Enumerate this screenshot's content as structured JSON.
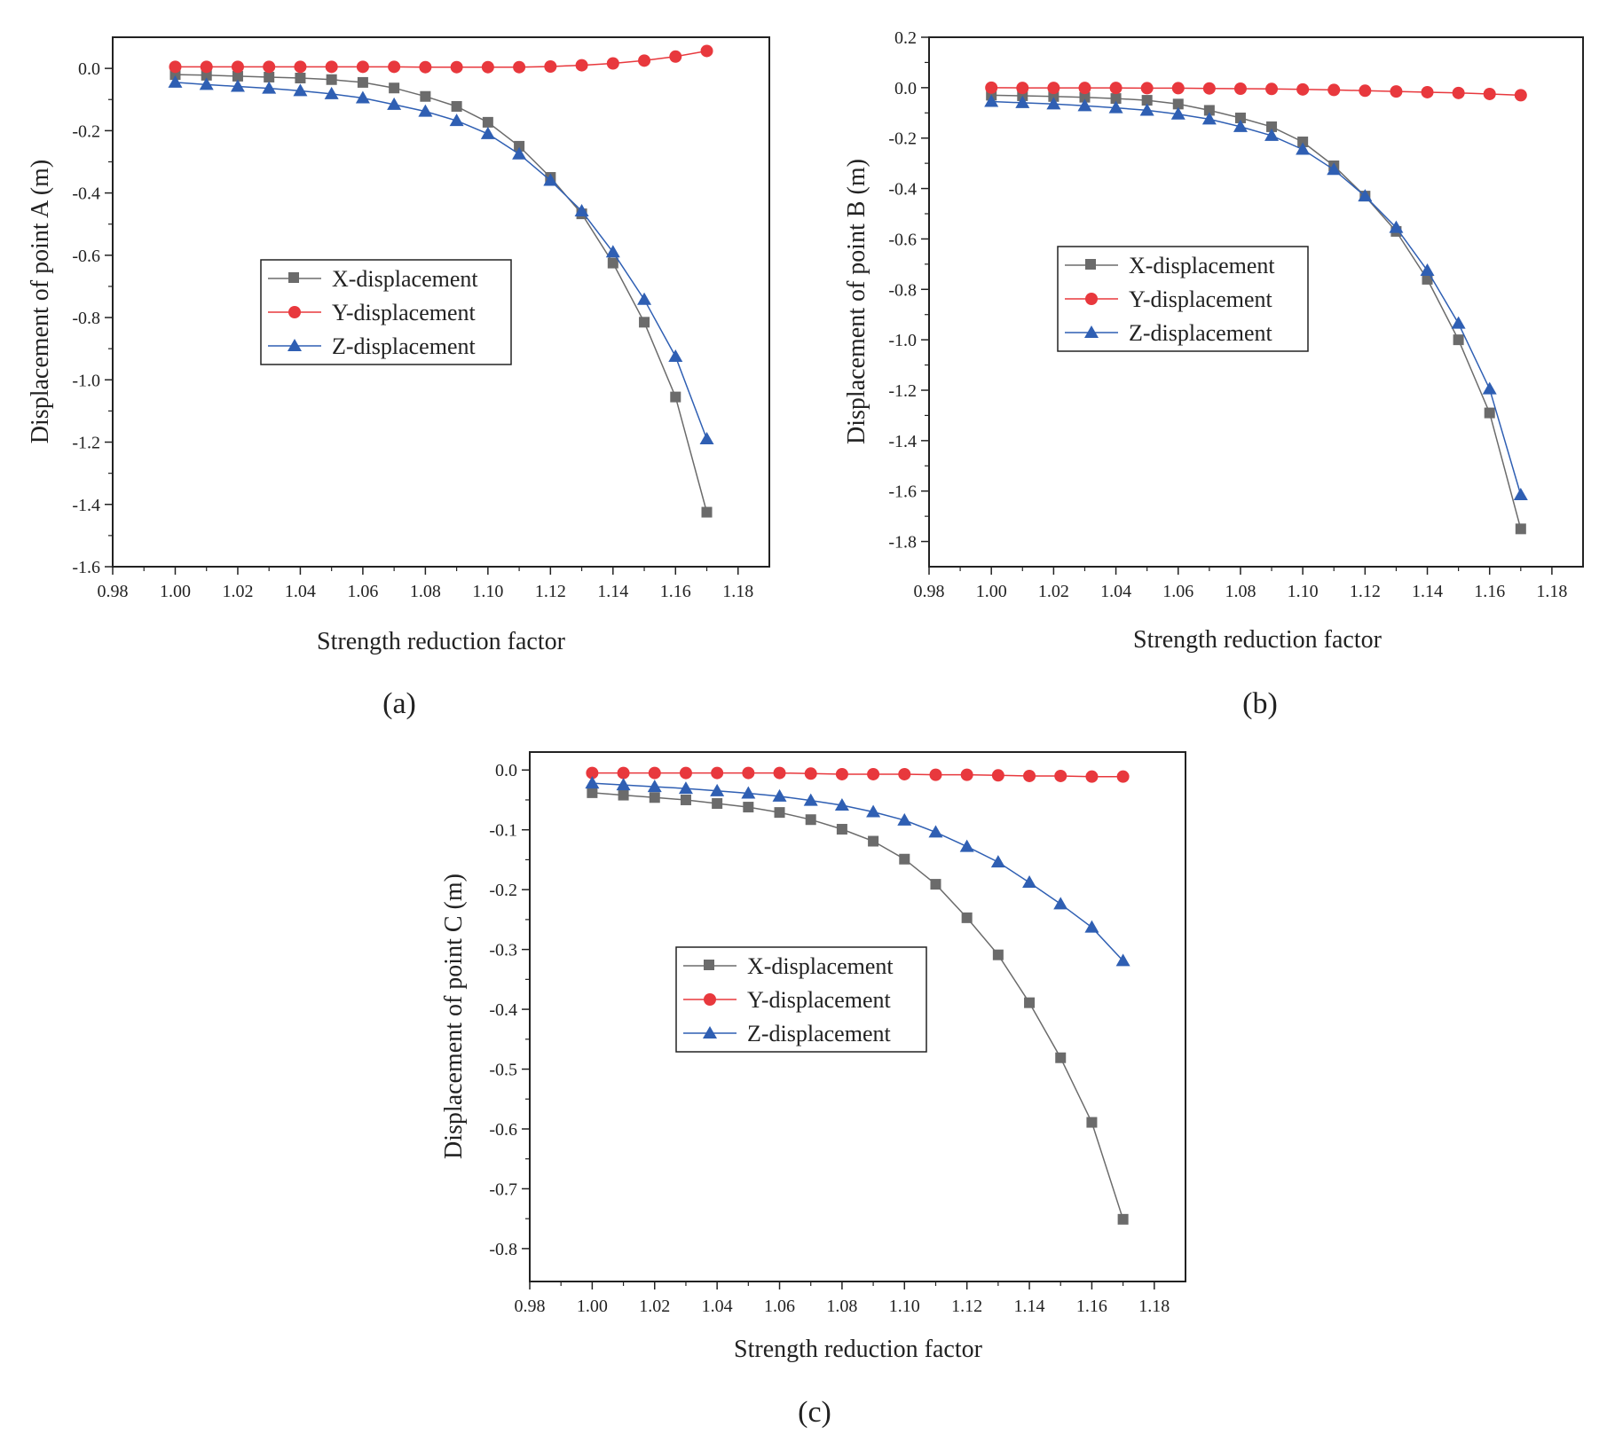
{
  "figure": {
    "captions": [
      "(a)",
      "(b)",
      "(c)"
    ]
  },
  "series_styles": [
    {
      "name": "X-displacement",
      "color": "#6b6b6b",
      "marker": "square"
    },
    {
      "name": "Y-displacement",
      "color": "#e8383d",
      "marker": "circle"
    },
    {
      "name": "Z-displacement",
      "color": "#2f5fb3",
      "marker": "triangle"
    }
  ],
  "chart_data": [
    {
      "type": "line",
      "caption": "(a)",
      "xlabel": "Strength reduction factor",
      "ylabel": "Displacement of point A (m)",
      "xlim": [
        0.98,
        1.19
      ],
      "ylim": [
        -1.6,
        0.1
      ],
      "xticks": [
        0.98,
        1.0,
        1.02,
        1.04,
        1.06,
        1.08,
        1.1,
        1.12,
        1.14,
        1.16,
        1.18
      ],
      "xtick_labels": [
        "0.98",
        "1.00",
        "1.02",
        "1.04",
        "1.06",
        "1.08",
        "1.10",
        "1.12",
        "1.14",
        "1.16",
        "1.18"
      ],
      "yticks": [
        0.0,
        -0.2,
        -0.4,
        -0.6,
        -0.8,
        -1.0,
        -1.2,
        -1.4,
        -1.6
      ],
      "ytick_labels": [
        "0.0",
        "-0.2",
        "-0.4",
        "-0.6",
        "-0.8",
        "-1.0",
        "-1.2",
        "-1.4",
        "-1.6"
      ],
      "legend_position": "center-left",
      "x": [
        1.0,
        1.01,
        1.02,
        1.03,
        1.04,
        1.05,
        1.06,
        1.07,
        1.08,
        1.09,
        1.1,
        1.11,
        1.12,
        1.13,
        1.14,
        1.15,
        1.16,
        1.17
      ],
      "series": [
        {
          "name": "X-displacement",
          "values": [
            -0.02,
            -0.022,
            -0.025,
            -0.028,
            -0.031,
            -0.036,
            -0.045,
            -0.063,
            -0.09,
            -0.122,
            -0.173,
            -0.25,
            -0.35,
            -0.467,
            -0.625,
            -0.815,
            -1.055,
            -1.425
          ]
        },
        {
          "name": "Y-displacement",
          "values": [
            0.005,
            0.005,
            0.005,
            0.005,
            0.005,
            0.005,
            0.005,
            0.005,
            0.004,
            0.004,
            0.004,
            0.004,
            0.006,
            0.01,
            0.016,
            0.025,
            0.038,
            0.056
          ]
        },
        {
          "name": "Z-displacement",
          "values": [
            -0.045,
            -0.052,
            -0.058,
            -0.064,
            -0.072,
            -0.082,
            -0.095,
            -0.116,
            -0.138,
            -0.168,
            -0.21,
            -0.275,
            -0.36,
            -0.458,
            -0.59,
            -0.742,
            -0.925,
            -1.19
          ]
        }
      ]
    },
    {
      "type": "line",
      "caption": "(b)",
      "xlabel": "Strength reduction factor",
      "ylabel": "Displacement of point B (m)",
      "xlim": [
        0.98,
        1.19
      ],
      "ylim": [
        -1.9,
        0.2
      ],
      "xticks": [
        0.98,
        1.0,
        1.02,
        1.04,
        1.06,
        1.08,
        1.1,
        1.12,
        1.14,
        1.16,
        1.18
      ],
      "xtick_labels": [
        "0.98",
        "1.00",
        "1.02",
        "1.04",
        "1.06",
        "1.08",
        "1.10",
        "1.12",
        "1.14",
        "1.16",
        "1.18"
      ],
      "yticks": [
        0.2,
        0.0,
        -0.2,
        -0.4,
        -0.6,
        -0.8,
        -1.0,
        -1.2,
        -1.4,
        -1.6,
        -1.8
      ],
      "ytick_labels": [
        "0.2",
        "0.0",
        "-0.2",
        "-0.4",
        "-0.6",
        "-0.8",
        "-1.0",
        "-1.2",
        "-1.4",
        "-1.6",
        "-1.8"
      ],
      "legend_position": "center-left",
      "x": [
        1.0,
        1.01,
        1.02,
        1.03,
        1.04,
        1.05,
        1.06,
        1.07,
        1.08,
        1.09,
        1.1,
        1.11,
        1.12,
        1.13,
        1.14,
        1.15,
        1.16,
        1.17
      ],
      "series": [
        {
          "name": "X-displacement",
          "values": [
            -0.03,
            -0.032,
            -0.035,
            -0.038,
            -0.043,
            -0.05,
            -0.065,
            -0.09,
            -0.12,
            -0.155,
            -0.215,
            -0.31,
            -0.43,
            -0.57,
            -0.76,
            -1.0,
            -1.29,
            -1.75
          ]
        },
        {
          "name": "Y-displacement",
          "values": [
            0.0,
            -0.001,
            -0.001,
            -0.001,
            -0.001,
            -0.002,
            -0.002,
            -0.003,
            -0.004,
            -0.005,
            -0.007,
            -0.009,
            -0.012,
            -0.015,
            -0.018,
            -0.021,
            -0.025,
            -0.03
          ]
        },
        {
          "name": "Z-displacement",
          "values": [
            -0.055,
            -0.06,
            -0.065,
            -0.072,
            -0.08,
            -0.09,
            -0.105,
            -0.125,
            -0.155,
            -0.19,
            -0.245,
            -0.325,
            -0.43,
            -0.555,
            -0.725,
            -0.935,
            -1.195,
            -1.615
          ]
        }
      ]
    },
    {
      "type": "line",
      "caption": "(c)",
      "xlabel": "Strength reduction factor",
      "ylabel": "Displacement of point C (m)",
      "xlim": [
        0.98,
        1.19
      ],
      "ylim": [
        -0.855,
        0.03
      ],
      "xticks": [
        0.98,
        1.0,
        1.02,
        1.04,
        1.06,
        1.08,
        1.1,
        1.12,
        1.14,
        1.16,
        1.18
      ],
      "xtick_labels": [
        "0.98",
        "1.00",
        "1.02",
        "1.04",
        "1.06",
        "1.08",
        "1.10",
        "1.12",
        "1.14",
        "1.16",
        "1.18"
      ],
      "yticks": [
        0.0,
        -0.1,
        -0.2,
        -0.3,
        -0.4,
        -0.5,
        -0.6,
        -0.7,
        -0.8
      ],
      "ytick_labels": [
        "0.0",
        "-0.1",
        "-0.2",
        "-0.3",
        "-0.4",
        "-0.5",
        "-0.6",
        "-0.7",
        "-0.8"
      ],
      "legend_position": "center-left",
      "x": [
        1.0,
        1.01,
        1.02,
        1.03,
        1.04,
        1.05,
        1.06,
        1.07,
        1.08,
        1.09,
        1.1,
        1.11,
        1.12,
        1.13,
        1.14,
        1.15,
        1.16,
        1.17
      ],
      "series": [
        {
          "name": "X-displacement",
          "values": [
            -0.038,
            -0.042,
            -0.046,
            -0.05,
            -0.056,
            -0.062,
            -0.071,
            -0.083,
            -0.099,
            -0.119,
            -0.149,
            -0.191,
            -0.247,
            -0.309,
            -0.389,
            -0.481,
            -0.589,
            -0.751
          ]
        },
        {
          "name": "Y-displacement",
          "values": [
            -0.005,
            -0.005,
            -0.005,
            -0.005,
            -0.005,
            -0.005,
            -0.005,
            -0.006,
            -0.007,
            -0.007,
            -0.007,
            -0.008,
            -0.008,
            -0.009,
            -0.01,
            -0.01,
            -0.011,
            -0.011
          ]
        },
        {
          "name": "Z-displacement",
          "values": [
            -0.022,
            -0.025,
            -0.028,
            -0.031,
            -0.035,
            -0.039,
            -0.044,
            -0.051,
            -0.059,
            -0.07,
            -0.084,
            -0.104,
            -0.128,
            -0.154,
            -0.188,
            -0.224,
            -0.263,
            -0.319
          ]
        }
      ]
    }
  ]
}
